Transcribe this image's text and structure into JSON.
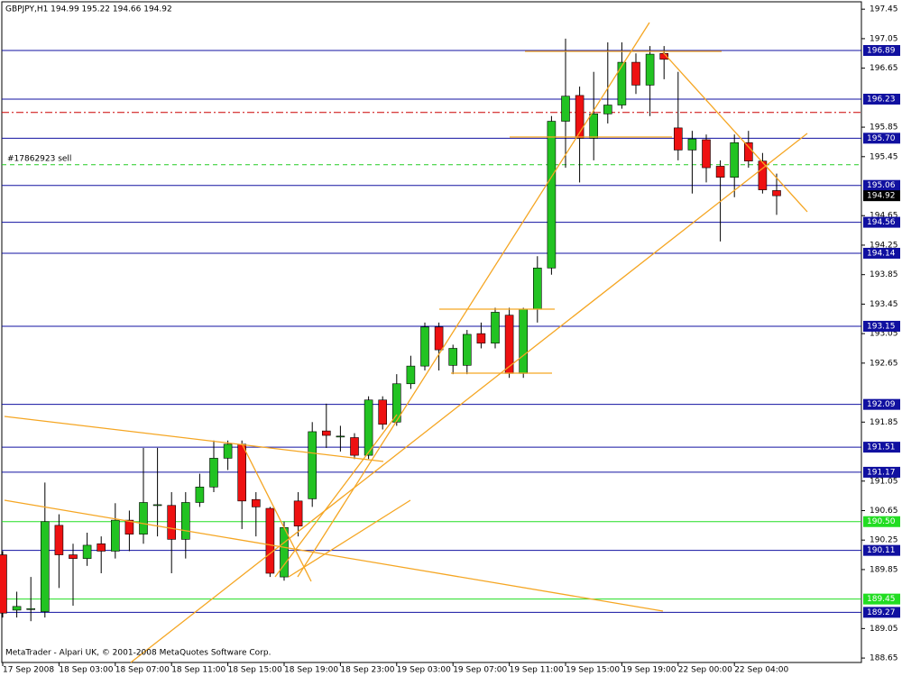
{
  "chart_data": {
    "type": "candlestick",
    "title": "GBPJPY,H1  194.99 195.22 194.66 194.92",
    "footer": "MetaTrader - Alpari UK, © 2001-2008 MetaQuotes Software Corp.",
    "categories": [
      "17 Sep 2008",
      null,
      null,
      null,
      "18 Sep 03:00",
      null,
      null,
      null,
      "18 Sep 07:00",
      null,
      null,
      null,
      "18 Sep 11:00",
      null,
      null,
      null,
      "18 Sep 15:00",
      null,
      null,
      null,
      "18 Sep 19:00",
      null,
      null,
      null,
      "18 Sep 23:00",
      null,
      null,
      null,
      "19 Sep 03:00",
      null,
      null,
      null,
      "19 Sep 07:00",
      null,
      null,
      null,
      "19 Sep 11:00",
      null,
      null,
      null,
      "19 Sep 15:00",
      null,
      null,
      null,
      "19 Sep 19:00",
      null,
      null,
      null,
      "22 Sep 00:00",
      null,
      null,
      null,
      "22 Sep 04:00",
      null,
      null,
      null
    ],
    "open": [
      190.05,
      189.3,
      189.32,
      189.28,
      190.45,
      190.05,
      190.0,
      190.2,
      190.1,
      190.52,
      190.33,
      190.72,
      190.72,
      190.26,
      190.76,
      190.97,
      191.36,
      191.55,
      190.8,
      190.68,
      189.75,
      190.78,
      190.81,
      191.73,
      191.66,
      191.64,
      191.4,
      192.15,
      191.85,
      192.37,
      192.61,
      193.14,
      192.62,
      192.62,
      193.05,
      192.92,
      193.3,
      192.51,
      193.38,
      193.94,
      195.93,
      196.28,
      195.7,
      196.03,
      196.15,
      196.73,
      196.42,
      196.85,
      195.84,
      195.54,
      195.68,
      195.32,
      195.17,
      195.64,
      195.39,
      194.99
    ],
    "high": [
      190.1,
      189.55,
      189.75,
      191.03,
      190.6,
      190.2,
      190.35,
      190.3,
      190.75,
      190.65,
      191.5,
      191.5,
      190.9,
      190.9,
      191.15,
      191.6,
      191.6,
      191.6,
      190.9,
      190.7,
      190.5,
      190.9,
      191.85,
      192.1,
      191.8,
      191.7,
      192.2,
      192.2,
      192.5,
      192.75,
      193.2,
      193.2,
      192.9,
      193.1,
      193.2,
      193.4,
      193.4,
      193.4,
      194.1,
      196.0,
      197.05,
      196.4,
      196.6,
      197.0,
      197.0,
      196.85,
      196.95,
      196.95,
      196.6,
      195.8,
      195.75,
      195.4,
      195.75,
      195.8,
      195.5,
      195.22
    ],
    "low": [
      189.2,
      189.2,
      189.15,
      189.2,
      189.6,
      189.36,
      189.9,
      189.8,
      190.0,
      190.1,
      190.2,
      190.3,
      189.8,
      190.0,
      190.7,
      190.9,
      191.2,
      190.4,
      190.3,
      189.75,
      189.7,
      190.3,
      190.7,
      191.5,
      191.45,
      191.35,
      191.35,
      191.75,
      191.8,
      192.3,
      192.55,
      192.55,
      192.5,
      192.5,
      192.85,
      192.85,
      192.45,
      192.45,
      193.2,
      193.85,
      195.3,
      195.1,
      195.4,
      195.9,
      196.1,
      196.3,
      196.0,
      196.5,
      195.4,
      194.95,
      195.1,
      194.3,
      194.9,
      195.3,
      194.95,
      194.66
    ],
    "close": [
      189.26,
      189.35,
      189.32,
      190.5,
      190.05,
      190.0,
      190.18,
      190.1,
      190.52,
      190.33,
      190.76,
      190.73,
      190.26,
      190.76,
      190.97,
      191.36,
      191.55,
      190.78,
      190.7,
      189.8,
      190.42,
      190.44,
      191.72,
      191.67,
      191.66,
      191.4,
      192.15,
      191.82,
      192.37,
      192.61,
      193.14,
      192.83,
      192.85,
      193.04,
      192.92,
      193.34,
      192.51,
      193.38,
      193.94,
      195.93,
      196.27,
      195.7,
      196.03,
      196.15,
      196.73,
      196.42,
      196.84,
      196.77,
      195.54,
      195.69,
      195.3,
      195.17,
      195.64,
      195.39,
      195.0,
      194.92
    ],
    "up_color": "#22c322",
    "down_color": "#ee1111",
    "ylim": [
      188.59,
      197.55
    ],
    "yticks": [
      197.45,
      197.05,
      196.65,
      195.85,
      195.45,
      194.65,
      194.25,
      193.85,
      193.45,
      193.05,
      192.65,
      191.85,
      191.05,
      190.65,
      190.25,
      189.85,
      189.05,
      188.65
    ],
    "levels": [
      {
        "value": 196.89,
        "label": "196.89",
        "color": "#1010a0"
      },
      {
        "value": 196.23,
        "label": "196.23",
        "color": "#1010a0"
      },
      {
        "value": 195.7,
        "label": "195.70",
        "color": "#1010a0"
      },
      {
        "value": 195.06,
        "label": "195.06",
        "color": "#1010a0"
      },
      {
        "value": 194.56,
        "label": "194.56",
        "color": "#1010a0"
      },
      {
        "value": 194.14,
        "label": "194.14",
        "color": "#1010a0"
      },
      {
        "value": 193.15,
        "label": "193.15",
        "color": "#1010a0"
      },
      {
        "value": 192.09,
        "label": "192.09",
        "color": "#1010a0"
      },
      {
        "value": 191.51,
        "label": "191.51",
        "color": "#1010a0"
      },
      {
        "value": 191.17,
        "label": "191.17",
        "color": "#1010a0"
      },
      {
        "value": 190.5,
        "label": "190.50",
        "color": "#22dd22"
      },
      {
        "value": 190.11,
        "label": "190.11",
        "color": "#1010a0"
      },
      {
        "value": 189.45,
        "label": "189.45",
        "color": "#22dd22"
      },
      {
        "value": 189.27,
        "label": "189.27",
        "color": "#1010a0"
      }
    ],
    "stop_line": {
      "value": 196.05,
      "color": "#cc0000"
    },
    "order_line": {
      "value": 195.34,
      "label": "#17862923 sell",
      "color": "#22cc22"
    },
    "last_price": {
      "value": 194.92,
      "label": "194.92"
    }
  }
}
